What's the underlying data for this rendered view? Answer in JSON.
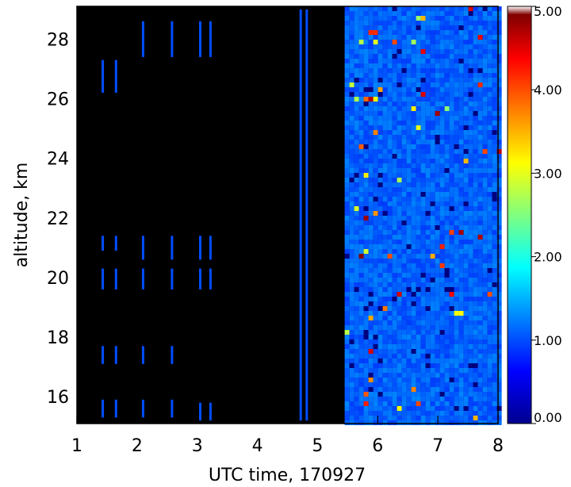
{
  "chart_data": {
    "type": "heatmap",
    "title": "",
    "xlabel": "UTC time, 170927",
    "ylabel": "altitude, km",
    "xlim": [
      1,
      8
    ],
    "ylim": [
      15.1,
      29.1
    ],
    "x_ticks": [
      "1",
      "2",
      "3",
      "4",
      "5",
      "6",
      "7",
      "8"
    ],
    "y_ticks": [
      "16",
      "18",
      "20",
      "22",
      "24",
      "26",
      "28"
    ],
    "x_tick_values": [
      1,
      2,
      3,
      4,
      5,
      6,
      7,
      8
    ],
    "y_tick_values": [
      16,
      18,
      20,
      22,
      24,
      26,
      28
    ],
    "colorbar": {
      "range": [
        0,
        5
      ],
      "ticks": [
        "0.00",
        "1.00",
        "2.00",
        "3.00",
        "4.00",
        "5.00"
      ],
      "tick_values": [
        0,
        1,
        2,
        3,
        4,
        5
      ]
    },
    "background_value_note": "",
    "sparse_profiles": [
      {
        "time": 1.43,
        "segments": [
          [
            26.2,
            27.3
          ],
          [
            20.9,
            21.4
          ],
          [
            19.6,
            20.3
          ],
          [
            17.1,
            17.7
          ],
          [
            15.3,
            15.9
          ]
        ]
      },
      {
        "time": 1.65,
        "segments": [
          [
            26.2,
            27.3
          ],
          [
            20.9,
            21.4
          ],
          [
            19.6,
            20.3
          ],
          [
            17.1,
            17.7
          ],
          [
            15.3,
            15.9
          ]
        ]
      },
      {
        "time": 2.1,
        "segments": [
          [
            27.4,
            28.6
          ],
          [
            20.6,
            21.4
          ],
          [
            19.6,
            20.3
          ],
          [
            17.1,
            17.7
          ],
          [
            15.3,
            15.9
          ]
        ]
      },
      {
        "time": 2.58,
        "segments": [
          [
            27.4,
            28.6
          ],
          [
            20.6,
            21.4
          ],
          [
            19.6,
            20.3
          ],
          [
            17.1,
            17.7
          ],
          [
            15.3,
            15.9
          ]
        ]
      },
      {
        "time": 3.05,
        "segments": [
          [
            27.4,
            28.6
          ],
          [
            20.6,
            21.4
          ],
          [
            19.6,
            20.3
          ],
          [
            15.2,
            15.8
          ]
        ]
      },
      {
        "time": 3.22,
        "segments": [
          [
            27.4,
            28.6
          ],
          [
            20.6,
            21.4
          ],
          [
            19.6,
            20.3
          ],
          [
            15.2,
            15.8
          ]
        ]
      },
      {
        "time": 4.72,
        "segments": [
          [
            15.2,
            29.0
          ]
        ]
      },
      {
        "time": 4.82,
        "segments": [
          [
            15.2,
            29.0
          ]
        ]
      }
    ],
    "continuous_region": {
      "time_start": 5.45,
      "time_end": 8.0,
      "typical_value": 1.1
    }
  }
}
